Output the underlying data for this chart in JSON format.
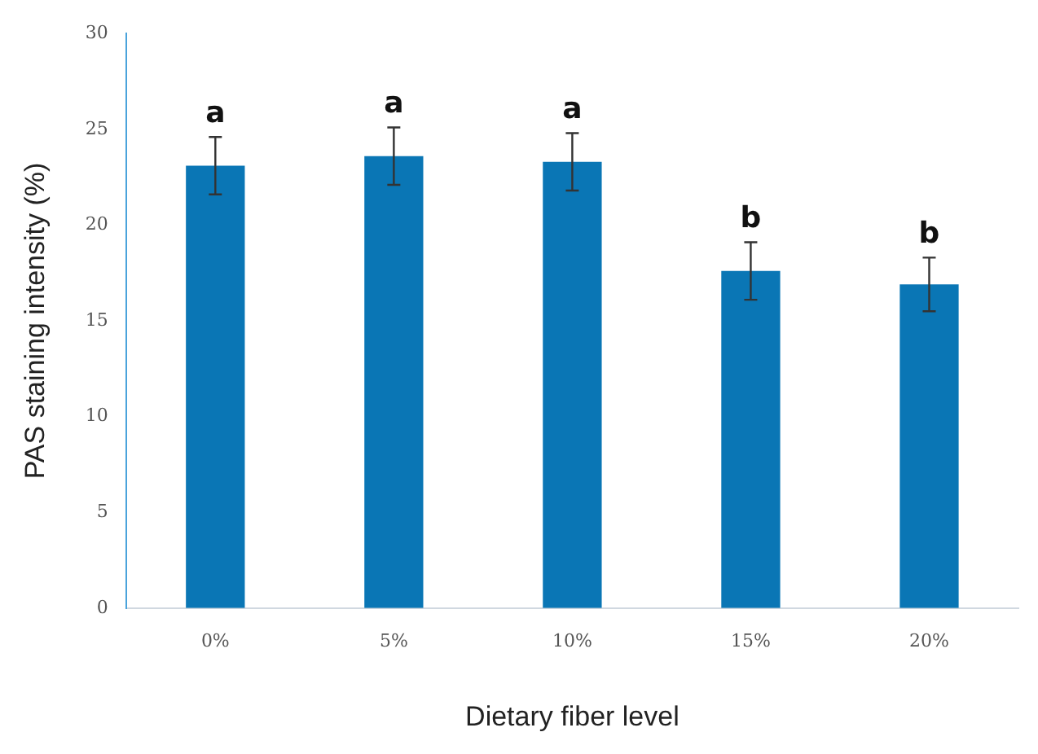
{
  "chart_data": {
    "type": "bar",
    "xlabel": "Dietary fiber level",
    "ylabel": "PAS staining intensity (%)",
    "categories": [
      "0%",
      "5%",
      "10%",
      "15%",
      "20%"
    ],
    "values": [
      23.1,
      23.6,
      23.3,
      17.6,
      16.9
    ],
    "errors": [
      1.5,
      1.5,
      1.5,
      1.5,
      1.4
    ],
    "color": "#0a76b5",
    "ylim": [
      0,
      30
    ],
    "yticks": [
      0,
      5,
      10,
      15,
      20,
      25,
      30
    ],
    "grid": false,
    "legend": false,
    "annotations": [
      "a",
      "a",
      "a",
      "b",
      "b"
    ]
  }
}
